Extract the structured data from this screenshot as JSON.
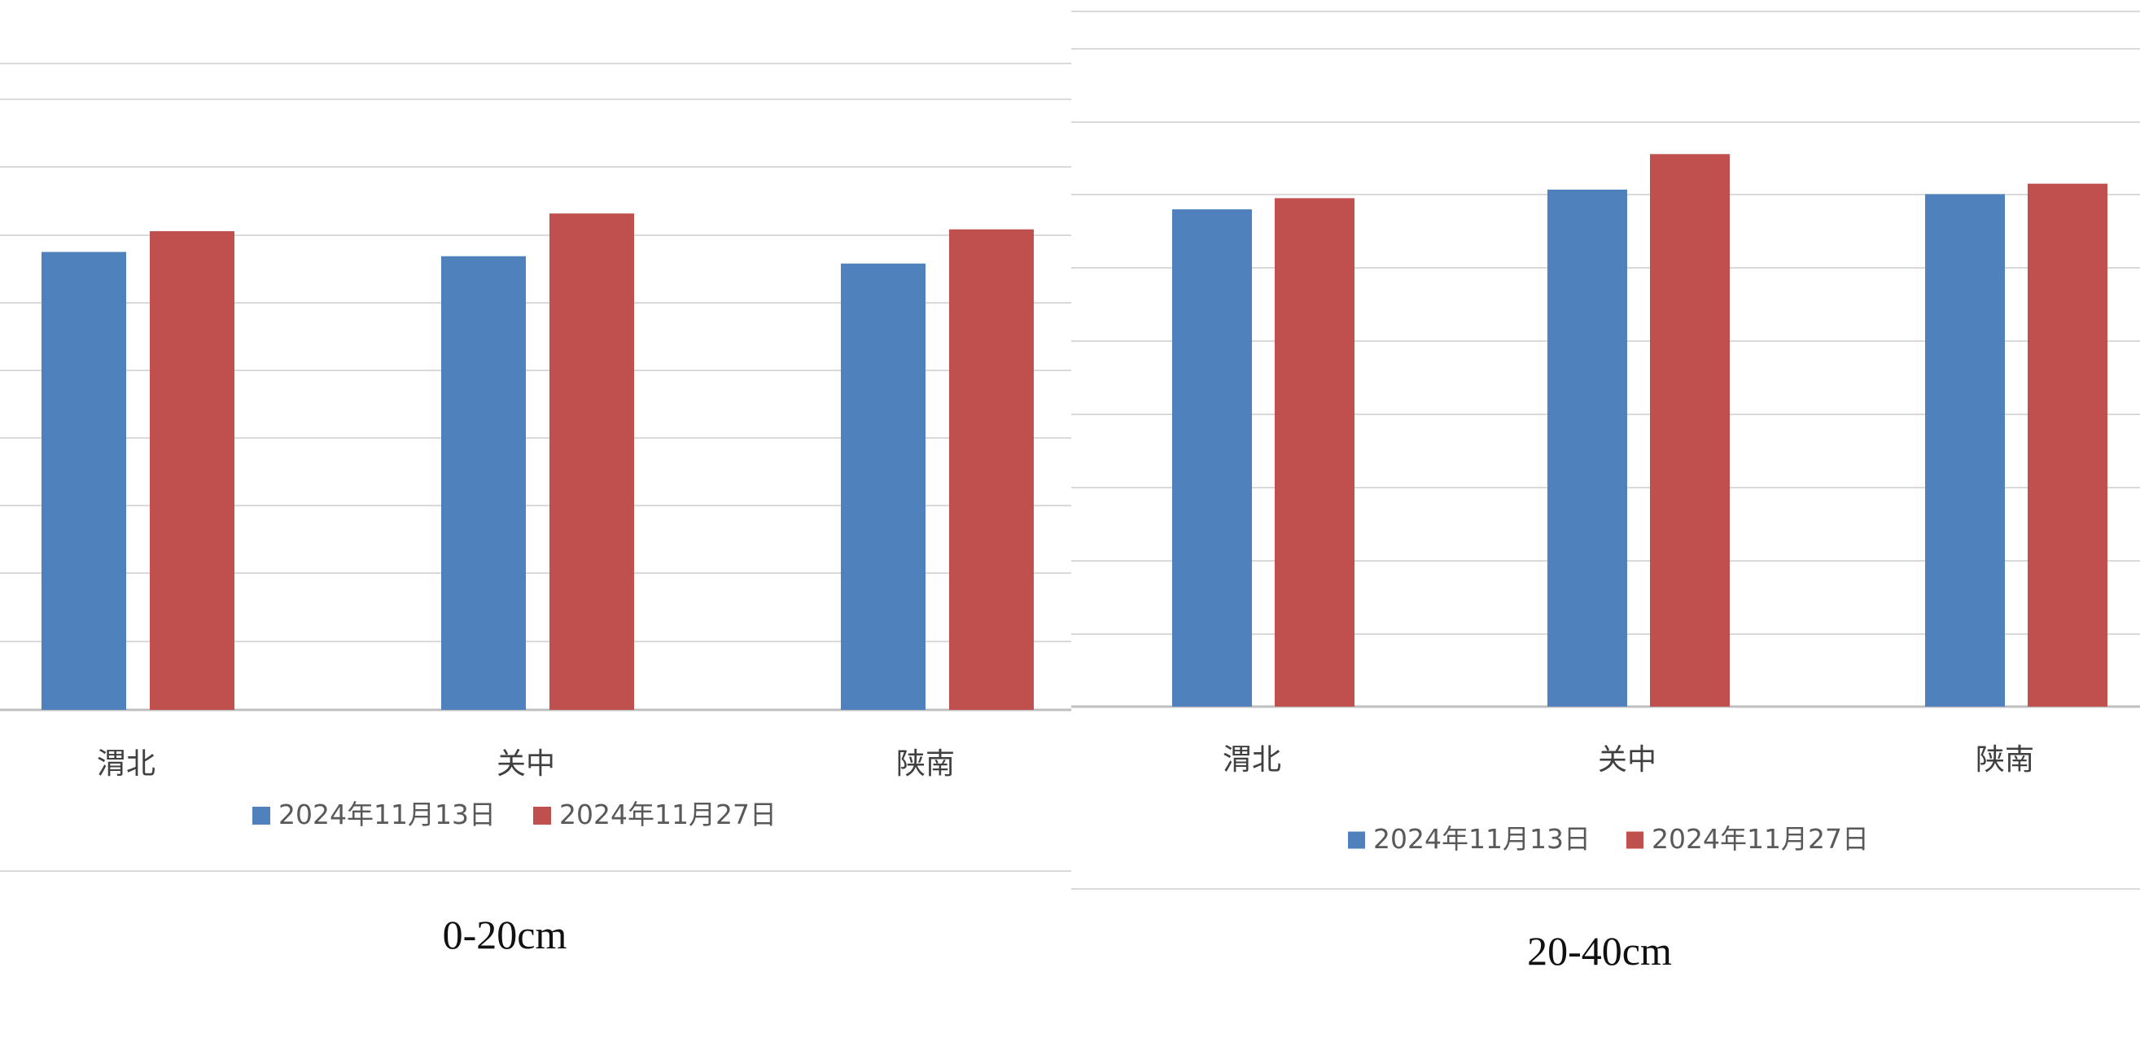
{
  "chart_data": [
    {
      "type": "bar",
      "caption": "0-20cm",
      "categories": [
        "渭北",
        "关中",
        "陕南"
      ],
      "series": [
        {
          "name": "2024年11月13日",
          "color": "#4f81bd",
          "values": [
            75,
            74.3,
            73.1
          ]
        },
        {
          "name": "2024年11月27日",
          "color": "#c0504d",
          "values": [
            78.4,
            81.3,
            78.7
          ]
        }
      ],
      "ylim": [
        0,
        100
      ],
      "grid": true,
      "legend": "bottom"
    },
    {
      "type": "bar",
      "caption": "20-40cm",
      "categories": [
        "渭北",
        "关中",
        "陕南"
      ],
      "series": [
        {
          "name": "2024年11月13日",
          "color": "#4f81bd",
          "values": [
            75.6,
            78.6,
            77.9
          ]
        },
        {
          "name": "2024年11月27日",
          "color": "#c0504d",
          "values": [
            77.3,
            84,
            79.5
          ]
        }
      ],
      "ylim": [
        0,
        100
      ],
      "grid": true,
      "legend": "bottom"
    }
  ]
}
